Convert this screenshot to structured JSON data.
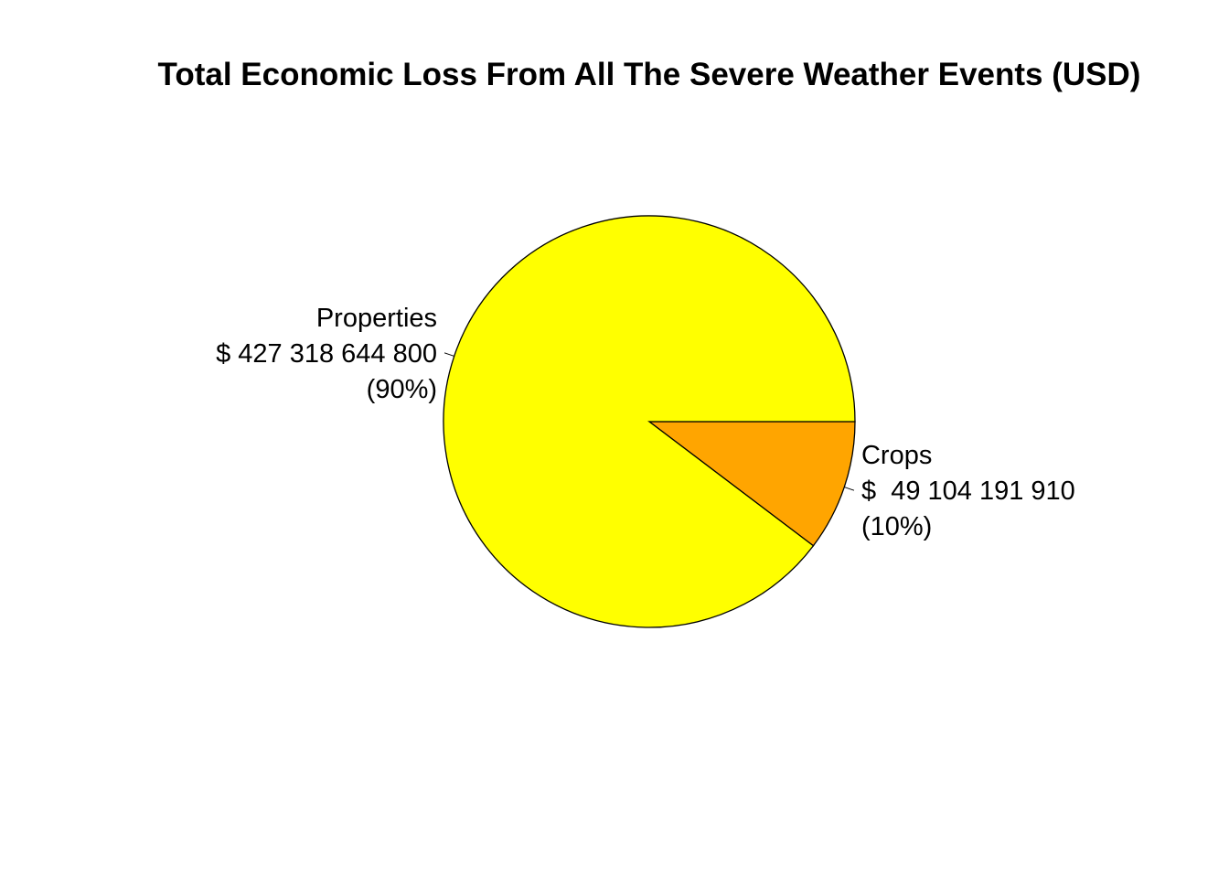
{
  "chart_data": {
    "type": "pie",
    "title": "Total Economic Loss From All The Severe Weather Events (USD)",
    "start_angle_deg": 0,
    "direction": "clockwise",
    "border_color": "#000000",
    "slices": [
      {
        "category": "Crops",
        "value": 49104191910,
        "percent": 10,
        "color": "#FFA500",
        "label_lines": [
          "Crops",
          "$  49 104 191 910",
          "(10%)"
        ]
      },
      {
        "category": "Properties",
        "value": 427318644800,
        "percent": 90,
        "color": "#FFFF00",
        "label_lines": [
          "Properties",
          "$ 427 318 644 800",
          "(90%)"
        ]
      }
    ]
  }
}
